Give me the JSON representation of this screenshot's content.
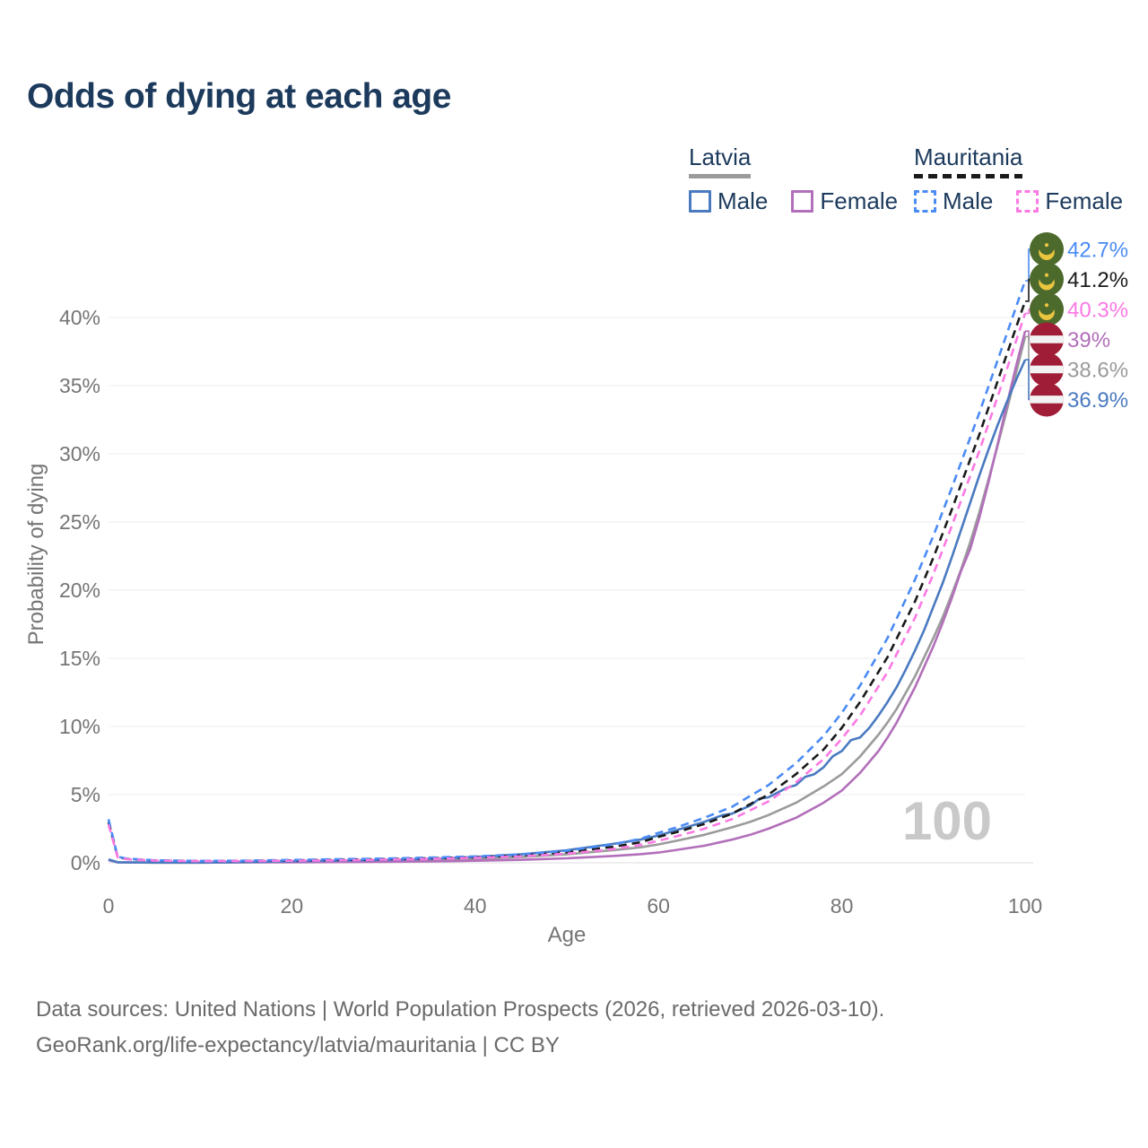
{
  "title": "Odds of dying at each age",
  "watermark": "100",
  "legend": {
    "latvia": {
      "label": "Latvia",
      "male": "Male",
      "female": "Female"
    },
    "mauritania": {
      "label": "Mauritania",
      "male": "Male",
      "female": "Female"
    }
  },
  "footer": {
    "line1": "Data sources: United Nations | World Population Prospects (2026, retrieved 2026-03-10).",
    "line2": "GeoRank.org/life-expectancy/latvia/mauritania | CC BY"
  },
  "colors": {
    "title_navy": "#1c3a5c",
    "axis_gray": "#757575",
    "grid": "#ededf0",
    "watermark_gray": "#c9c9c9",
    "flag_mauritania_green": "#4d6a2d",
    "flag_mauritania_yellow": "#ecc53e",
    "flag_latvia_red": "#a01d37",
    "flag_latvia_white": "#f2f2f2"
  },
  "chart_data": {
    "type": "line",
    "title": "Odds of dying at each age",
    "xlabel": "Age",
    "ylabel": "Probability of dying",
    "xlim": [
      0,
      100
    ],
    "ylim": [
      0,
      44
    ],
    "grid": true,
    "legend_position": "top-right",
    "xtick_values": [
      0,
      20,
      40,
      60,
      80,
      100
    ],
    "xtick_labels": [
      "0",
      "20",
      "40",
      "60",
      "80",
      "100"
    ],
    "ytick_values": [
      0,
      5,
      10,
      15,
      20,
      25,
      30,
      35,
      40
    ],
    "ytick_labels": [
      "0%",
      "5%",
      "10%",
      "15%",
      "20%",
      "25%",
      "30%",
      "35%",
      "40%"
    ],
    "series": [
      {
        "id": "latvia_male",
        "name": "Latvia Male",
        "color": "#4a7ac0",
        "dash": false,
        "points": [
          [
            0,
            0.25
          ],
          [
            1,
            0.04
          ],
          [
            5,
            0.02
          ],
          [
            10,
            0.02
          ],
          [
            15,
            0.05
          ],
          [
            20,
            0.11
          ],
          [
            25,
            0.16
          ],
          [
            30,
            0.21
          ],
          [
            35,
            0.29
          ],
          [
            40,
            0.42
          ],
          [
            45,
            0.62
          ],
          [
            50,
            0.92
          ],
          [
            55,
            1.38
          ],
          [
            58,
            1.7
          ],
          [
            60,
            2.0
          ],
          [
            62,
            2.4
          ],
          [
            65,
            3.0
          ],
          [
            67,
            3.5
          ],
          [
            68,
            3.6
          ],
          [
            70,
            4.2
          ],
          [
            71,
            4.7
          ],
          [
            72,
            4.8
          ],
          [
            74,
            5.5
          ],
          [
            75,
            5.7
          ],
          [
            76,
            6.3
          ],
          [
            77,
            6.5
          ],
          [
            78,
            7.0
          ],
          [
            79,
            7.8
          ],
          [
            80,
            8.2
          ],
          [
            81,
            9.0
          ],
          [
            82,
            9.2
          ],
          [
            83,
            9.9
          ],
          [
            84,
            10.8
          ],
          [
            85,
            11.8
          ],
          [
            86,
            12.9
          ],
          [
            87,
            14.2
          ],
          [
            88,
            15.6
          ],
          [
            89,
            17.1
          ],
          [
            90,
            18.8
          ],
          [
            91,
            20.5
          ],
          [
            92,
            22.4
          ],
          [
            93,
            24.4
          ],
          [
            94,
            26.4
          ],
          [
            95,
            28.4
          ],
          [
            96,
            30.3
          ],
          [
            97,
            32.1
          ],
          [
            98,
            33.8
          ],
          [
            99,
            35.4
          ],
          [
            100,
            36.9
          ]
        ]
      },
      {
        "id": "latvia_female",
        "name": "Latvia Female",
        "color": "#b26fba",
        "dash": false,
        "points": [
          [
            0,
            0.2
          ],
          [
            1,
            0.03
          ],
          [
            5,
            0.01
          ],
          [
            10,
            0.01
          ],
          [
            15,
            0.03
          ],
          [
            20,
            0.04
          ],
          [
            25,
            0.05
          ],
          [
            30,
            0.07
          ],
          [
            35,
            0.1
          ],
          [
            40,
            0.15
          ],
          [
            45,
            0.22
          ],
          [
            50,
            0.33
          ],
          [
            55,
            0.5
          ],
          [
            58,
            0.63
          ],
          [
            60,
            0.75
          ],
          [
            62,
            0.95
          ],
          [
            65,
            1.25
          ],
          [
            68,
            1.7
          ],
          [
            70,
            2.05
          ],
          [
            72,
            2.5
          ],
          [
            75,
            3.3
          ],
          [
            78,
            4.4
          ],
          [
            80,
            5.3
          ],
          [
            82,
            6.6
          ],
          [
            84,
            8.2
          ],
          [
            85,
            9.2
          ],
          [
            86,
            10.3
          ],
          [
            88,
            12.9
          ],
          [
            90,
            15.9
          ],
          [
            91,
            17.6
          ],
          [
            92,
            19.4
          ],
          [
            93,
            21.4
          ],
          [
            94,
            23.0
          ],
          [
            95,
            25.3
          ],
          [
            96,
            27.9
          ],
          [
            97,
            30.7
          ],
          [
            98,
            33.6
          ],
          [
            99,
            36.4
          ],
          [
            100,
            39.0
          ]
        ]
      },
      {
        "id": "latvia_all",
        "name": "Latvia",
        "color": "#9b9b9b",
        "dash": false,
        "points": [
          [
            0,
            0.22
          ],
          [
            1,
            0.035
          ],
          [
            5,
            0.015
          ],
          [
            10,
            0.015
          ],
          [
            15,
            0.04
          ],
          [
            20,
            0.08
          ],
          [
            25,
            0.11
          ],
          [
            30,
            0.15
          ],
          [
            35,
            0.2
          ],
          [
            40,
            0.29
          ],
          [
            45,
            0.42
          ],
          [
            50,
            0.62
          ],
          [
            55,
            0.93
          ],
          [
            58,
            1.13
          ],
          [
            60,
            1.35
          ],
          [
            62,
            1.62
          ],
          [
            65,
            2.05
          ],
          [
            68,
            2.6
          ],
          [
            70,
            3.0
          ],
          [
            72,
            3.5
          ],
          [
            75,
            4.4
          ],
          [
            78,
            5.6
          ],
          [
            80,
            6.5
          ],
          [
            82,
            7.8
          ],
          [
            84,
            9.4
          ],
          [
            85,
            10.3
          ],
          [
            86,
            11.3
          ],
          [
            88,
            13.7
          ],
          [
            90,
            16.5
          ],
          [
            91,
            18.0
          ],
          [
            92,
            19.7
          ],
          [
            93,
            21.5
          ],
          [
            94,
            23.5
          ],
          [
            95,
            25.7
          ],
          [
            96,
            28.1
          ],
          [
            97,
            30.6
          ],
          [
            98,
            33.2
          ],
          [
            99,
            35.9
          ],
          [
            100,
            38.6
          ]
        ]
      },
      {
        "id": "mauritania_male",
        "name": "Mauritania Male",
        "color": "#4a8bf5",
        "dash": true,
        "points": [
          [
            0,
            3.2
          ],
          [
            1,
            0.45
          ],
          [
            2,
            0.3
          ],
          [
            5,
            0.18
          ],
          [
            10,
            0.14
          ],
          [
            15,
            0.16
          ],
          [
            20,
            0.21
          ],
          [
            25,
            0.26
          ],
          [
            30,
            0.31
          ],
          [
            35,
            0.38
          ],
          [
            40,
            0.47
          ],
          [
            45,
            0.62
          ],
          [
            50,
            0.88
          ],
          [
            55,
            1.35
          ],
          [
            58,
            1.75
          ],
          [
            60,
            2.2
          ],
          [
            62,
            2.6
          ],
          [
            65,
            3.3
          ],
          [
            68,
            4.1
          ],
          [
            70,
            4.9
          ],
          [
            72,
            5.7
          ],
          [
            75,
            7.3
          ],
          [
            78,
            9.3
          ],
          [
            80,
            11.0
          ],
          [
            82,
            13.0
          ],
          [
            85,
            16.5
          ],
          [
            88,
            20.8
          ],
          [
            90,
            24.0
          ],
          [
            92,
            27.5
          ],
          [
            95,
            33.0
          ],
          [
            98,
            38.8
          ],
          [
            100,
            42.7
          ]
        ]
      },
      {
        "id": "mauritania_female",
        "name": "Mauritania Female",
        "color": "#fb79e3",
        "dash": true,
        "points": [
          [
            0,
            2.8
          ],
          [
            1,
            0.4
          ],
          [
            2,
            0.26
          ],
          [
            5,
            0.16
          ],
          [
            10,
            0.12
          ],
          [
            15,
            0.13
          ],
          [
            20,
            0.15
          ],
          [
            25,
            0.18
          ],
          [
            30,
            0.23
          ],
          [
            35,
            0.28
          ],
          [
            40,
            0.36
          ],
          [
            45,
            0.47
          ],
          [
            50,
            0.67
          ],
          [
            55,
            1.0
          ],
          [
            58,
            1.3
          ],
          [
            60,
            1.62
          ],
          [
            62,
            1.95
          ],
          [
            65,
            2.5
          ],
          [
            68,
            3.2
          ],
          [
            70,
            3.85
          ],
          [
            72,
            4.5
          ],
          [
            75,
            5.9
          ],
          [
            78,
            7.6
          ],
          [
            80,
            9.1
          ],
          [
            82,
            10.8
          ],
          [
            85,
            14.0
          ],
          [
            88,
            18.0
          ],
          [
            90,
            21.2
          ],
          [
            92,
            24.7
          ],
          [
            95,
            30.2
          ],
          [
            98,
            36.2
          ],
          [
            100,
            40.3
          ]
        ]
      },
      {
        "id": "mauritania_all",
        "name": "Mauritania",
        "color": "#1a1a1a",
        "dash": true,
        "points": [
          [
            0,
            3.0
          ],
          [
            1,
            0.42
          ],
          [
            2,
            0.28
          ],
          [
            5,
            0.17
          ],
          [
            10,
            0.13
          ],
          [
            15,
            0.14
          ],
          [
            20,
            0.18
          ],
          [
            25,
            0.22
          ],
          [
            30,
            0.27
          ],
          [
            35,
            0.33
          ],
          [
            40,
            0.41
          ],
          [
            45,
            0.54
          ],
          [
            50,
            0.77
          ],
          [
            55,
            1.17
          ],
          [
            58,
            1.5
          ],
          [
            60,
            1.9
          ],
          [
            62,
            2.25
          ],
          [
            65,
            2.85
          ],
          [
            68,
            3.6
          ],
          [
            70,
            4.3
          ],
          [
            72,
            5.0
          ],
          [
            75,
            6.5
          ],
          [
            78,
            8.3
          ],
          [
            80,
            9.9
          ],
          [
            82,
            11.8
          ],
          [
            85,
            15.1
          ],
          [
            88,
            19.2
          ],
          [
            90,
            22.4
          ],
          [
            92,
            25.9
          ],
          [
            95,
            31.4
          ],
          [
            98,
            37.3
          ],
          [
            100,
            41.2
          ]
        ]
      }
    ],
    "end_labels": [
      {
        "text": "42.7%",
        "value": 42.7,
        "series": "mauritania_male",
        "flag": "mauritania",
        "color": "#4a8bf5"
      },
      {
        "text": "41.2%",
        "value": 41.2,
        "series": "mauritania_all",
        "flag": "mauritania",
        "color": "#1a1a1a"
      },
      {
        "text": "40.3%",
        "value": 40.3,
        "series": "mauritania_female",
        "flag": "mauritania",
        "color": "#fb79e3"
      },
      {
        "text": "39%",
        "value": 39,
        "series": "latvia_female",
        "flag": "latvia",
        "color": "#b26fba"
      },
      {
        "text": "38.6%",
        "value": 38.6,
        "series": "latvia_all",
        "flag": "latvia",
        "color": "#9b9b9b"
      },
      {
        "text": "36.9%",
        "value": 36.9,
        "series": "latvia_male",
        "flag": "latvia",
        "color": "#4a7ac0"
      }
    ]
  }
}
